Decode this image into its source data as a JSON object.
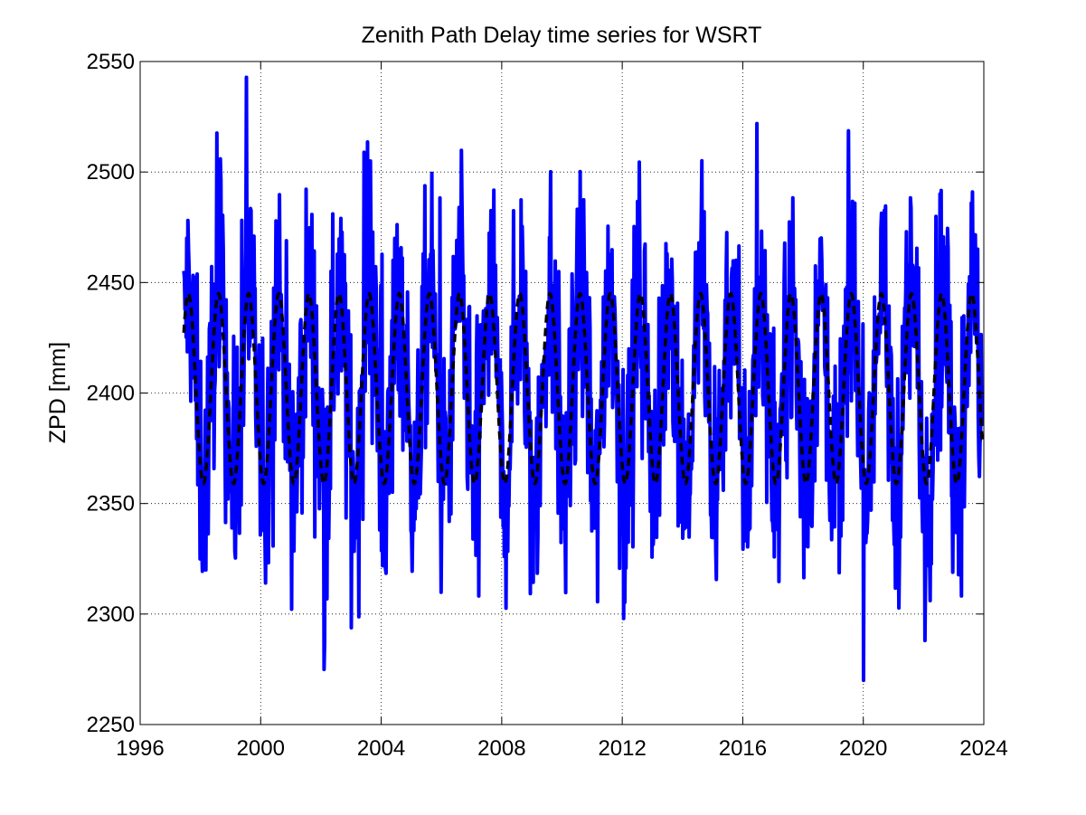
{
  "chart_data": {
    "type": "line",
    "title": "Zenith Path Delay time series for WSRT",
    "xlabel": "",
    "ylabel": "ZPD [mm]",
    "xlim": [
      1996,
      2024
    ],
    "ylim": [
      2250,
      2550
    ],
    "x_ticks": [
      1996,
      2000,
      2004,
      2008,
      2012,
      2016,
      2020,
      2024
    ],
    "y_ticks": [
      2250,
      2300,
      2350,
      2400,
      2450,
      2500,
      2550
    ],
    "grid": true,
    "legend": "none",
    "series": [
      {
        "color": "#0000ff",
        "style": "solid",
        "start_year": 1997.45,
        "end_year": 2023.95,
        "samples_per_year": 52,
        "mean": 2402,
        "annual_amplitude": 43,
        "peak_fraction_of_year": 0.6,
        "scatter_range": [
          2270,
          2545
        ]
      },
      {
        "color": "#000000",
        "style": "dashed",
        "start_year": 1997.45,
        "end_year": 2023.95,
        "mean": 2402,
        "annual_amplitude": 43,
        "peak_fraction_of_year": 0.6,
        "min": 2358,
        "max": 2446
      }
    ]
  }
}
